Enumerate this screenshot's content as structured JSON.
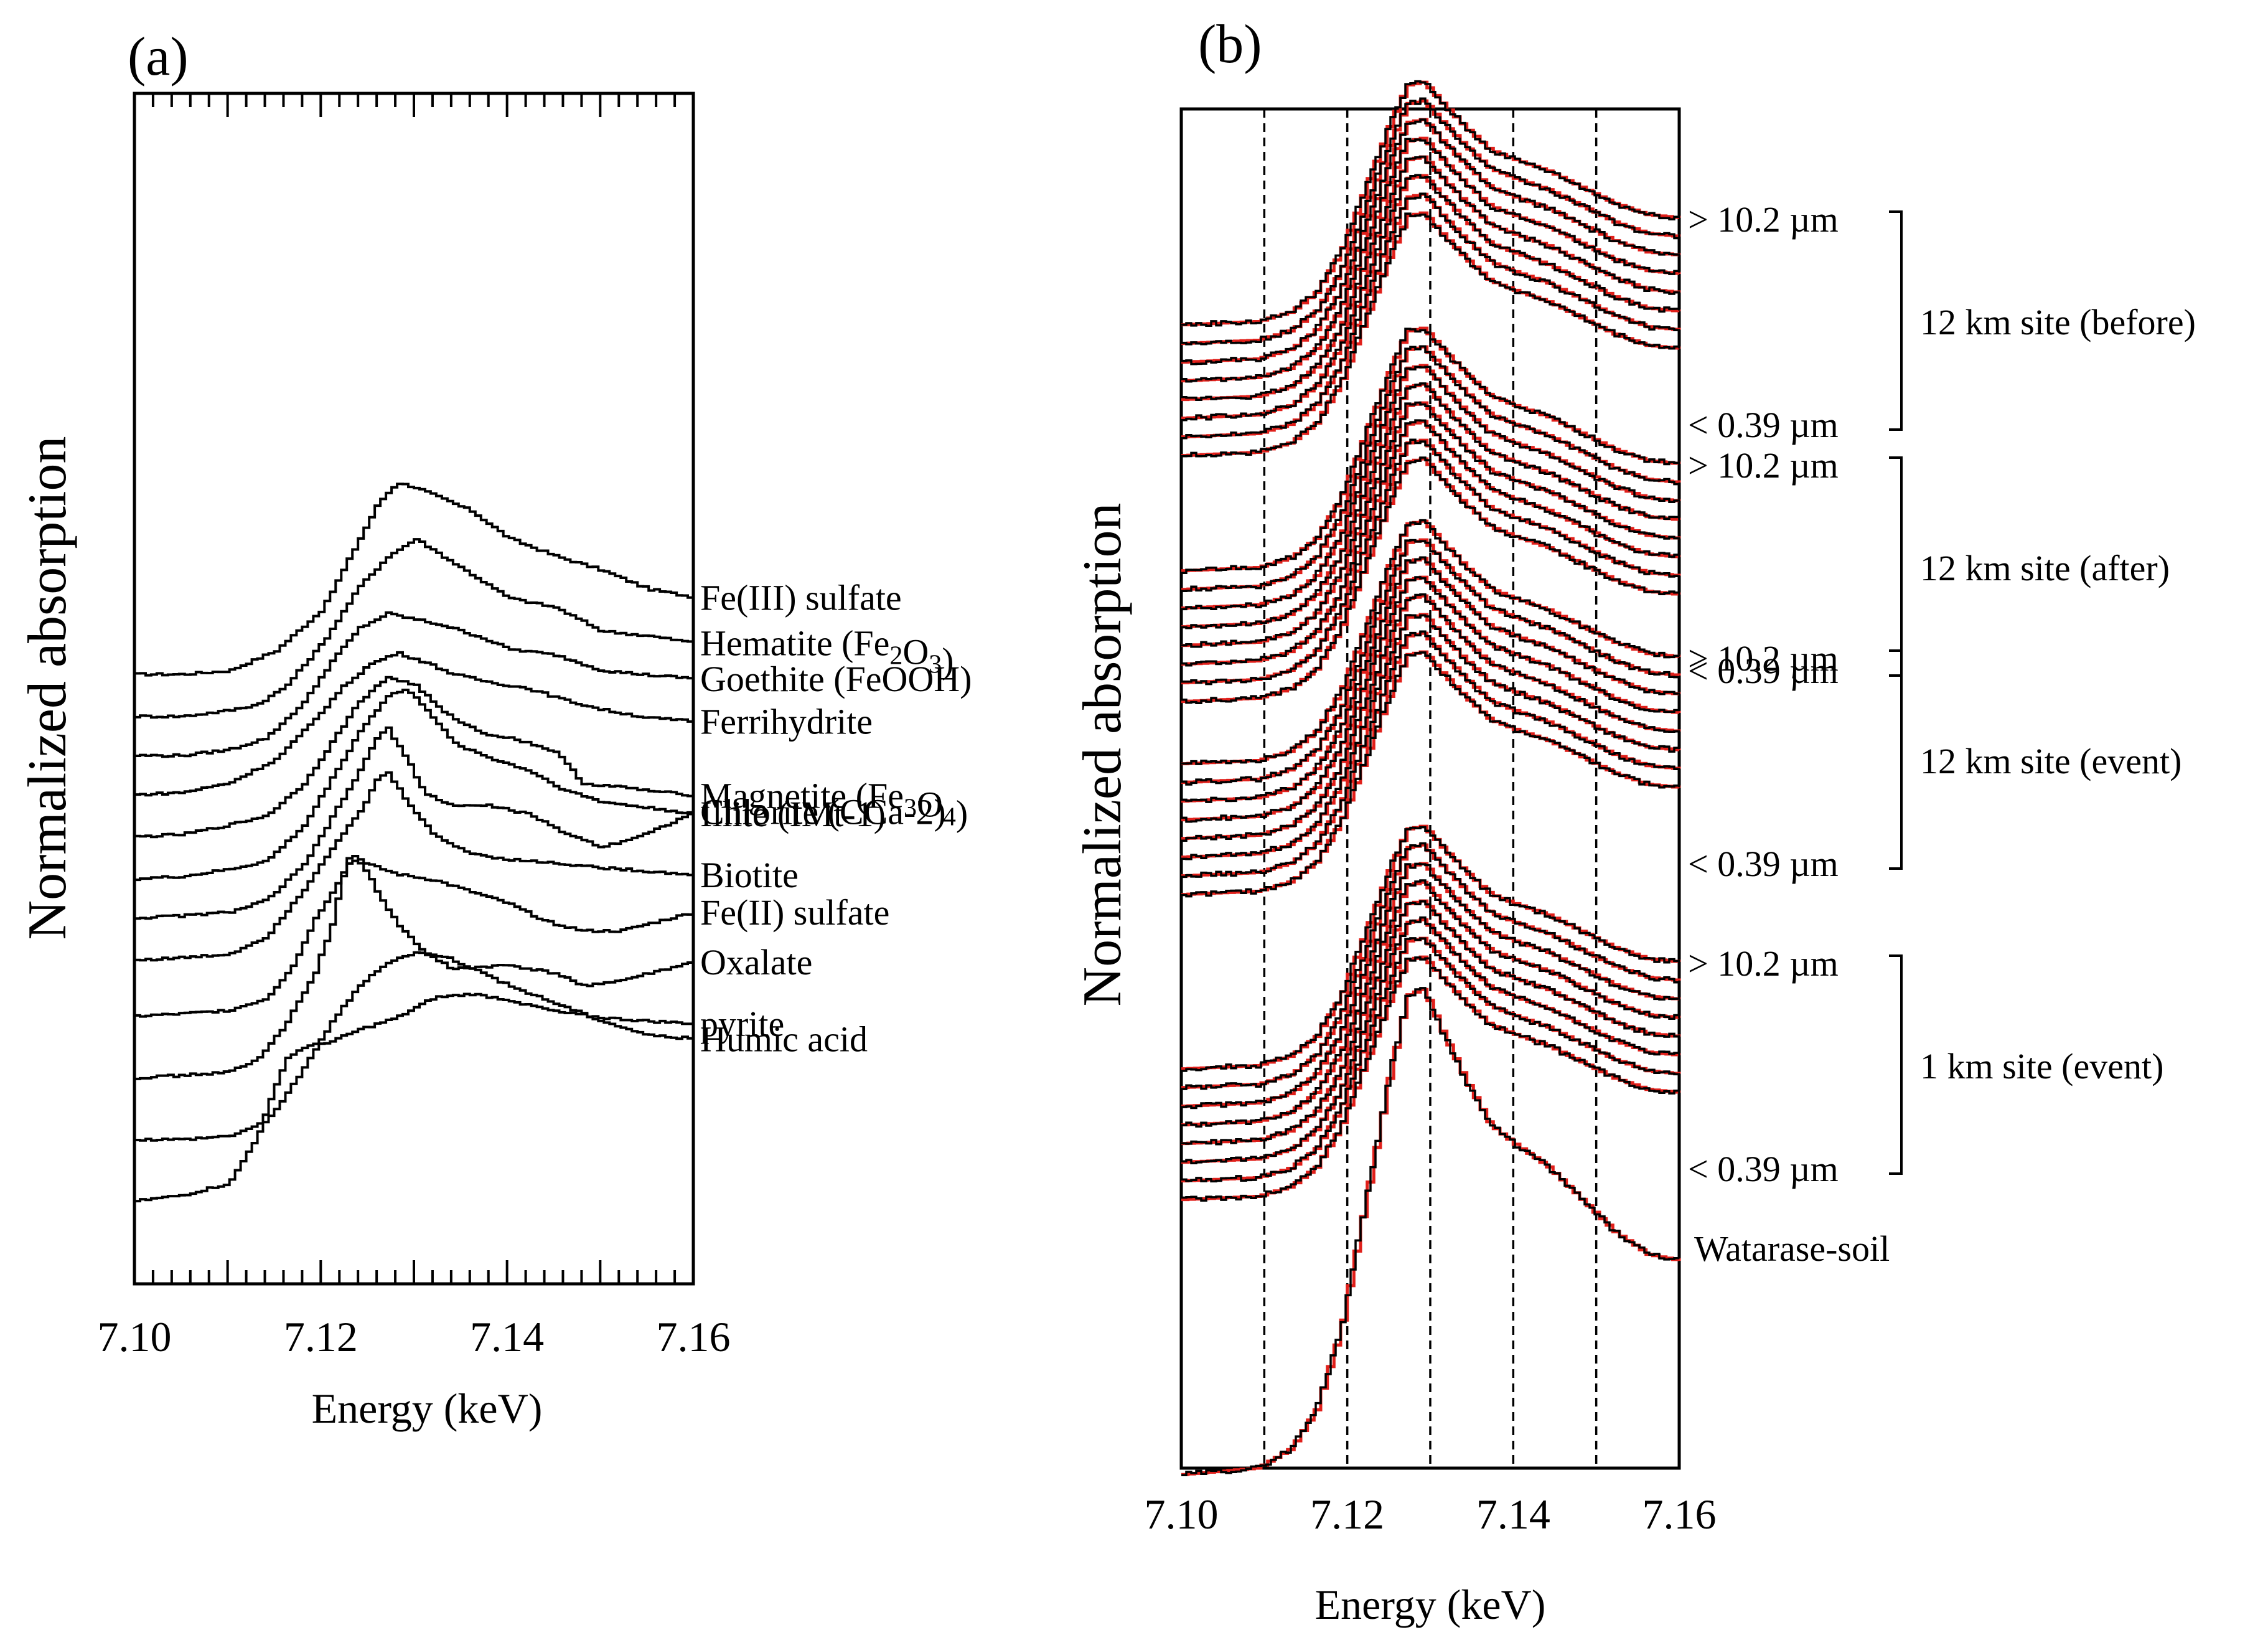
{
  "chart_data": [
    {
      "panel_label": "(a)",
      "type": "line",
      "xlabel": "Energy (keV)",
      "ylabel": "Normalized absorption",
      "xlim": [
        7.1,
        7.16
      ],
      "xticks": [
        "7.10",
        "7.12",
        "7.14",
        "7.16"
      ],
      "series_color": "#000000",
      "series": [
        {
          "name": "Fe(III) sulfate",
          "offset": 10.3,
          "points": [
            [
              7.1,
              0.0
            ],
            [
              7.105,
              0.0
            ],
            [
              7.11,
              0.03
            ],
            [
              7.115,
              0.2
            ],
            [
              7.12,
              0.55
            ],
            [
              7.124,
              1.15
            ],
            [
              7.126,
              1.45
            ],
            [
              7.128,
              1.62
            ],
            [
              7.13,
              1.58
            ],
            [
              7.133,
              1.48
            ],
            [
              7.136,
              1.38
            ],
            [
              7.14,
              1.15
            ],
            [
              7.145,
              1.0
            ],
            [
              7.15,
              0.88
            ],
            [
              7.155,
              0.72
            ],
            [
              7.16,
              0.65
            ]
          ]
        },
        {
          "name": "Hematite (Fe2O3)",
          "offset": 9.55,
          "points": [
            [
              7.1,
              0.0
            ],
            [
              7.105,
              0.0
            ],
            [
              7.11,
              0.05
            ],
            [
              7.113,
              0.1
            ],
            [
              7.116,
              0.25
            ],
            [
              7.12,
              0.62
            ],
            [
              7.124,
              1.1
            ],
            [
              7.127,
              1.35
            ],
            [
              7.13,
              1.5
            ],
            [
              7.133,
              1.35
            ],
            [
              7.136,
              1.2
            ],
            [
              7.14,
              1.0
            ],
            [
              7.145,
              0.92
            ],
            [
              7.15,
              0.72
            ],
            [
              7.155,
              0.68
            ],
            [
              7.16,
              0.62
            ]
          ]
        },
        {
          "name": "Goethite (FeOOH)",
          "offset": 8.85,
          "points": [
            [
              7.1,
              0.0
            ],
            [
              7.105,
              0.0
            ],
            [
              7.11,
              0.05
            ],
            [
              7.114,
              0.15
            ],
            [
              7.118,
              0.45
            ],
            [
              7.121,
              0.8
            ],
            [
              7.124,
              1.08
            ],
            [
              7.127,
              1.2
            ],
            [
              7.13,
              1.15
            ],
            [
              7.133,
              1.1
            ],
            [
              7.137,
              1.0
            ],
            [
              7.14,
              0.9
            ],
            [
              7.145,
              0.85
            ],
            [
              7.15,
              0.72
            ],
            [
              7.155,
              0.68
            ],
            [
              7.16,
              0.65
            ]
          ]
        },
        {
          "name": "Ferrihydrite",
          "offset": 8.15,
          "points": [
            [
              7.1,
              0.0
            ],
            [
              7.105,
              0.02
            ],
            [
              7.11,
              0.1
            ],
            [
              7.115,
              0.3
            ],
            [
              7.119,
              0.62
            ],
            [
              7.122,
              0.9
            ],
            [
              7.125,
              1.1
            ],
            [
              7.128,
              1.2
            ],
            [
              7.131,
              1.12
            ],
            [
              7.134,
              1.02
            ],
            [
              7.138,
              0.95
            ],
            [
              7.142,
              0.9
            ],
            [
              7.146,
              0.8
            ],
            [
              7.15,
              0.72
            ],
            [
              7.155,
              0.65
            ],
            [
              7.16,
              0.62
            ]
          ]
        },
        {
          "name": "Magnetite (Fe3O4)",
          "offset": 7.4,
          "points": [
            [
              7.1,
              0.0
            ],
            [
              7.105,
              0.02
            ],
            [
              7.11,
              0.1
            ],
            [
              7.114,
              0.18
            ],
            [
              7.118,
              0.45
            ],
            [
              7.121,
              0.8
            ],
            [
              7.124,
              1.15
            ],
            [
              7.127,
              1.35
            ],
            [
              7.13,
              1.28
            ],
            [
              7.133,
              1.05
            ],
            [
              7.137,
              0.88
            ],
            [
              7.141,
              0.82
            ],
            [
              7.145,
              0.72
            ],
            [
              7.148,
              0.45
            ],
            [
              7.152,
              0.42
            ],
            [
              7.156,
              0.38
            ],
            [
              7.16,
              0.35
            ]
          ]
        },
        {
          "name": "Illite (IMt-1)",
          "offset": 6.65,
          "points": [
            [
              7.1,
              0.0
            ],
            [
              7.105,
              0.02
            ],
            [
              7.11,
              0.08
            ],
            [
              7.114,
              0.15
            ],
            [
              7.118,
              0.45
            ],
            [
              7.121,
              0.85
            ],
            [
              7.124,
              1.25
            ],
            [
              7.127,
              1.55
            ],
            [
              7.129,
              1.6
            ],
            [
              7.131,
              1.45
            ],
            [
              7.134,
              1.15
            ],
            [
              7.138,
              1.02
            ],
            [
              7.142,
              0.92
            ],
            [
              7.146,
              0.75
            ],
            [
              7.15,
              0.65
            ],
            [
              7.155,
              0.6
            ],
            [
              7.16,
              0.55
            ]
          ]
        },
        {
          "name": "Chlorite (CCa-2)",
          "offset": 5.95,
          "points": [
            [
              7.1,
              0.0
            ],
            [
              7.105,
              0.02
            ],
            [
              7.11,
              0.05
            ],
            [
              7.114,
              0.15
            ],
            [
              7.118,
              0.45
            ],
            [
              7.121,
              0.85
            ],
            [
              7.124,
              1.25
            ],
            [
              7.126,
              1.55
            ],
            [
              7.127,
              1.6
            ],
            [
              7.129,
              1.35
            ],
            [
              7.131,
              1.05
            ],
            [
              7.134,
              0.95
            ],
            [
              7.138,
              0.95
            ],
            [
              7.142,
              0.88
            ],
            [
              7.146,
              0.72
            ],
            [
              7.15,
              0.6
            ],
            [
              7.155,
              0.72
            ],
            [
              7.16,
              0.9
            ]
          ]
        },
        {
          "name": "Biotite",
          "offset": 5.2,
          "points": [
            [
              7.1,
              0.0
            ],
            [
              7.105,
              0.02
            ],
            [
              7.11,
              0.05
            ],
            [
              7.114,
              0.2
            ],
            [
              7.118,
              0.6
            ],
            [
              7.121,
              0.95
            ],
            [
              7.124,
              1.25
            ],
            [
              7.126,
              1.55
            ],
            [
              7.127,
              1.58
            ],
            [
              7.129,
              1.35
            ],
            [
              7.132,
              1.05
            ],
            [
              7.136,
              0.9
            ],
            [
              7.14,
              0.85
            ],
            [
              7.145,
              0.82
            ],
            [
              7.15,
              0.78
            ],
            [
              7.155,
              0.75
            ],
            [
              7.16,
              0.72
            ]
          ]
        },
        {
          "name": "Fe(II) sulfate",
          "offset": 4.2,
          "points": [
            [
              7.1,
              0.0
            ],
            [
              7.105,
              0.02
            ],
            [
              7.11,
              0.05
            ],
            [
              7.114,
              0.15
            ],
            [
              7.117,
              0.45
            ],
            [
              7.119,
              0.8
            ],
            [
              7.121,
              1.05
            ],
            [
              7.123,
              1.32
            ],
            [
              7.125,
              1.28
            ],
            [
              7.128,
              1.2
            ],
            [
              7.132,
              1.15
            ],
            [
              7.136,
              1.05
            ],
            [
              7.14,
              0.95
            ],
            [
              7.144,
              0.8
            ],
            [
              7.148,
              0.72
            ],
            [
              7.152,
              0.72
            ],
            [
              7.156,
              0.8
            ],
            [
              7.16,
              0.88
            ]
          ]
        },
        {
          "name": "Oxalate",
          "offset": 3.1,
          "points": [
            [
              7.1,
              0.0
            ],
            [
              7.105,
              0.02
            ],
            [
              7.11,
              0.05
            ],
            [
              7.113,
              0.15
            ],
            [
              7.116,
              0.45
            ],
            [
              7.119,
              0.85
            ],
            [
              7.121,
              1.3
            ],
            [
              7.122,
              1.65
            ],
            [
              7.123,
              1.9
            ],
            [
              7.124,
              1.85
            ],
            [
              7.126,
              1.55
            ],
            [
              7.128,
              1.3
            ],
            [
              7.131,
              1.05
            ],
            [
              7.134,
              0.92
            ],
            [
              7.14,
              0.95
            ],
            [
              7.145,
              0.88
            ],
            [
              7.148,
              0.78
            ],
            [
              7.152,
              0.82
            ],
            [
              7.156,
              0.9
            ],
            [
              7.16,
              0.98
            ]
          ]
        },
        {
          "name": "Humic acid",
          "offset": 2.0,
          "points": [
            [
              7.1,
              0.0
            ],
            [
              7.105,
              0.0
            ],
            [
              7.11,
              0.03
            ],
            [
              7.114,
              0.15
            ],
            [
              7.118,
              0.6
            ],
            [
              7.121,
              1.0
            ],
            [
              7.124,
              1.3
            ],
            [
              7.127,
              1.5
            ],
            [
              7.13,
              1.58
            ],
            [
              7.133,
              1.55
            ],
            [
              7.136,
              1.45
            ],
            [
              7.14,
              1.3
            ],
            [
              7.145,
              1.15
            ],
            [
              7.15,
              1.0
            ],
            [
              7.155,
              0.88
            ],
            [
              7.16,
              0.85
            ]
          ]
        },
        {
          "name": "pyrite",
          "offset": 0.9,
          "points": [
            [
              7.1,
              0.0
            ],
            [
              7.105,
              0.05
            ],
            [
              7.11,
              0.15
            ],
            [
              7.113,
              0.55
            ],
            [
              7.116,
              1.2
            ],
            [
              7.118,
              1.3
            ],
            [
              7.121,
              1.35
            ],
            [
              7.124,
              1.45
            ],
            [
              7.128,
              1.55
            ],
            [
              7.132,
              1.72
            ],
            [
              7.136,
              1.75
            ],
            [
              7.14,
              1.7
            ],
            [
              7.145,
              1.6
            ],
            [
              7.15,
              1.55
            ],
            [
              7.155,
              1.52
            ],
            [
              7.16,
              1.5
            ]
          ]
        }
      ]
    },
    {
      "panel_label": "(b)",
      "type": "line",
      "xlabel": "Energy (keV)",
      "ylabel": "Normalized absorption",
      "xlim": [
        7.1,
        7.16
      ],
      "xticks": [
        "7.10",
        "7.12",
        "7.14",
        "7.16"
      ],
      "gridlines_x": [
        7.11,
        7.12,
        7.13,
        7.14,
        7.15
      ],
      "measured_color": "#000000",
      "fit_color": "#e0201b",
      "shape": [
        [
          7.1,
          0.0
        ],
        [
          7.109,
          0.02
        ],
        [
          7.113,
          0.08
        ],
        [
          7.116,
          0.2
        ],
        [
          7.119,
          0.45
        ],
        [
          7.122,
          0.85
        ],
        [
          7.125,
          1.25
        ],
        [
          7.127,
          1.48
        ],
        [
          7.129,
          1.5
        ],
        [
          7.131,
          1.38
        ],
        [
          7.134,
          1.22
        ],
        [
          7.137,
          1.08
        ],
        [
          7.14,
          1.02
        ],
        [
          7.144,
          0.95
        ],
        [
          7.148,
          0.85
        ],
        [
          7.152,
          0.75
        ],
        [
          7.156,
          0.68
        ],
        [
          7.16,
          0.66
        ]
      ],
      "groups": [
        {
          "name": "12 km site (before)",
          "top_label": "> 10.2 µm",
          "bottom_label": "< 0.39 µm",
          "spectra": 8
        },
        {
          "name": "12 km site (after)",
          "top_label": "> 10.2 µm",
          "bottom_label": "< 0.39 µm",
          "spectra": 8
        },
        {
          "name": "12 km site (event)",
          "top_label": "> 10.2 µm",
          "bottom_label": "< 0.39 µm",
          "spectra": 8
        },
        {
          "name": "1 km site (event)",
          "top_label": "> 10.2 µm",
          "bottom_label": "< 0.39 µm",
          "spectra": 8
        }
      ],
      "reference": {
        "name": "Watarase-soil"
      }
    }
  ]
}
